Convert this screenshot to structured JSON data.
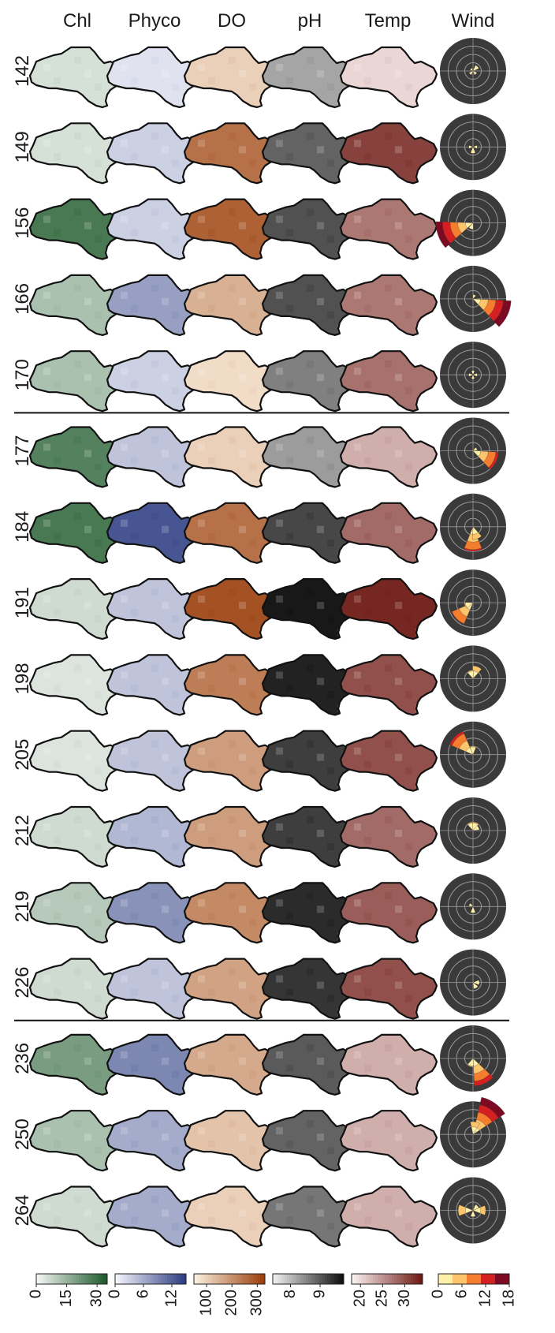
{
  "columns": [
    "Chl",
    "Phyco",
    "DO",
    "pH",
    "Temp",
    "Wind"
  ],
  "rows": [
    "142",
    "149",
    "156",
    "166",
    "170",
    "177",
    "184",
    "191",
    "198",
    "205",
    "212",
    "219",
    "226",
    "236",
    "250",
    "264"
  ],
  "group_breaks_after_row": [
    "170",
    "226"
  ],
  "colorbars": [
    {
      "variable": "Chl",
      "ticks": [
        "0",
        "15",
        "30"
      ],
      "range": [
        0,
        35
      ],
      "colors": [
        "#f4f6f4",
        "#1e5a2a"
      ]
    },
    {
      "variable": "Phyco",
      "ticks": [
        "0",
        "6",
        "12"
      ],
      "range": [
        0,
        15
      ],
      "colors": [
        "#f4f5fb",
        "#2c3d82"
      ]
    },
    {
      "variable": "DO",
      "ticks": [
        "100",
        "200",
        "300"
      ],
      "range": [
        50,
        330
      ],
      "colors": [
        "#fbefde",
        "#9a3e0c"
      ]
    },
    {
      "variable": "pH",
      "ticks": [
        "8",
        "9"
      ],
      "range": [
        7.4,
        9.8
      ],
      "colors": [
        "#f0f0f0",
        "#0f0f0f"
      ]
    },
    {
      "variable": "Temp",
      "ticks": [
        "20",
        "25",
        "30"
      ],
      "range": [
        18,
        34
      ],
      "colors": [
        "#fbf1f0",
        "#6e1a14"
      ]
    },
    {
      "variable": "Wind speed",
      "ticks": [
        "0",
        "6",
        "12",
        "18"
      ],
      "range": [
        0,
        18
      ],
      "bins": [
        "#fff0a8",
        "#fdc56b",
        "#f57d2e",
        "#d42020",
        "#7c0a22"
      ]
    }
  ],
  "chart_data": {
    "type": "heatmap",
    "description_units": "panel fill intensity (mean value per cell)",
    "series": [
      {
        "name": "Chl",
        "values": [
          5,
          5,
          28,
          12,
          12,
          26,
          28,
          6,
          4,
          4,
          6,
          10,
          6,
          20,
          12,
          6
        ]
      },
      {
        "name": "Phyco",
        "values": [
          1.5,
          3,
          3,
          7,
          3,
          4,
          13,
          4,
          4,
          4,
          5,
          8,
          4,
          9,
          6,
          6
        ]
      },
      {
        "name": "DO",
        "values": [
          100,
          250,
          275,
          150,
          80,
          100,
          250,
          300,
          230,
          180,
          180,
          210,
          170,
          160,
          120,
          100
        ]
      },
      {
        "name": "pH",
        "values": [
          8.2,
          8.9,
          9.1,
          9.1,
          8.6,
          8.3,
          9.2,
          9.7,
          9.6,
          9.3,
          9.3,
          9.5,
          9.4,
          9.0,
          8.9,
          8.7
        ]
      },
      {
        "name": "Temp",
        "values": [
          20,
          31,
          27,
          27,
          27.5,
          23,
          28,
          33,
          30,
          30,
          28,
          29,
          30,
          23,
          23,
          23
        ]
      }
    ],
    "wind_roses": [
      {
        "day": "142",
        "petals": [
          {
            "dir": 45,
            "speed": 3
          },
          {
            "dir": 135,
            "speed": 2
          },
          {
            "dir": 225,
            "speed": 2
          },
          {
            "dir": 315,
            "speed": 1.5
          }
        ]
      },
      {
        "day": "149",
        "petals": [
          {
            "dir": 90,
            "speed": 2
          },
          {
            "dir": 180,
            "speed": 3
          },
          {
            "dir": 270,
            "speed": 2
          }
        ]
      },
      {
        "day": "156",
        "petals": [
          {
            "dir": 250,
            "speed": 17.5
          },
          {
            "dir": 200,
            "speed": 3
          }
        ]
      },
      {
        "day": "166",
        "petals": [
          {
            "dir": 115,
            "speed": 18
          },
          {
            "dir": 20,
            "speed": 2
          }
        ]
      },
      {
        "day": "170",
        "petals": [
          {
            "dir": 0,
            "speed": 2
          },
          {
            "dir": 90,
            "speed": 2
          },
          {
            "dir": 180,
            "speed": 2
          },
          {
            "dir": 270,
            "speed": 2
          }
        ]
      },
      {
        "day": "177",
        "petals": [
          {
            "dir": 115,
            "speed": 12
          },
          {
            "dir": 60,
            "speed": 2
          }
        ]
      },
      {
        "day": "184",
        "petals": [
          {
            "dir": 180,
            "speed": 11.5
          },
          {
            "dir": 160,
            "speed": 6
          }
        ]
      },
      {
        "day": "191",
        "petals": [
          {
            "dir": 225,
            "speed": 11
          },
          {
            "dir": 250,
            "speed": 4
          }
        ]
      },
      {
        "day": "198",
        "petals": [
          {
            "dir": 20,
            "speed": 6
          },
          {
            "dir": 340,
            "speed": 4
          }
        ]
      },
      {
        "day": "205",
        "petals": [
          {
            "dir": 315,
            "speed": 12
          },
          {
            "dir": 0,
            "speed": 4
          }
        ]
      },
      {
        "day": "212",
        "petals": [
          {
            "dir": 340,
            "speed": 4
          },
          {
            "dir": 20,
            "speed": 4
          },
          {
            "dir": 60,
            "speed": 3
          }
        ]
      },
      {
        "day": "219",
        "petals": [
          {
            "dir": 180,
            "speed": 3
          },
          {
            "dir": 300,
            "speed": 2
          }
        ]
      },
      {
        "day": "226",
        "petals": [
          {
            "dir": 90,
            "speed": 3
          },
          {
            "dir": 150,
            "speed": 3
          }
        ]
      },
      {
        "day": "236",
        "petals": [
          {
            "dir": 155,
            "speed": 13
          },
          {
            "dir": 200,
            "speed": 4
          }
        ]
      },
      {
        "day": "250",
        "petals": [
          {
            "dir": 35,
            "speed": 19
          },
          {
            "dir": 10,
            "speed": 6
          }
        ]
      },
      {
        "day": "264",
        "petals": [
          {
            "dir": 90,
            "speed": 6
          },
          {
            "dir": 270,
            "speed": 7
          },
          {
            "dir": 180,
            "speed": 3
          },
          {
            "dir": 45,
            "speed": 3
          }
        ]
      }
    ]
  }
}
